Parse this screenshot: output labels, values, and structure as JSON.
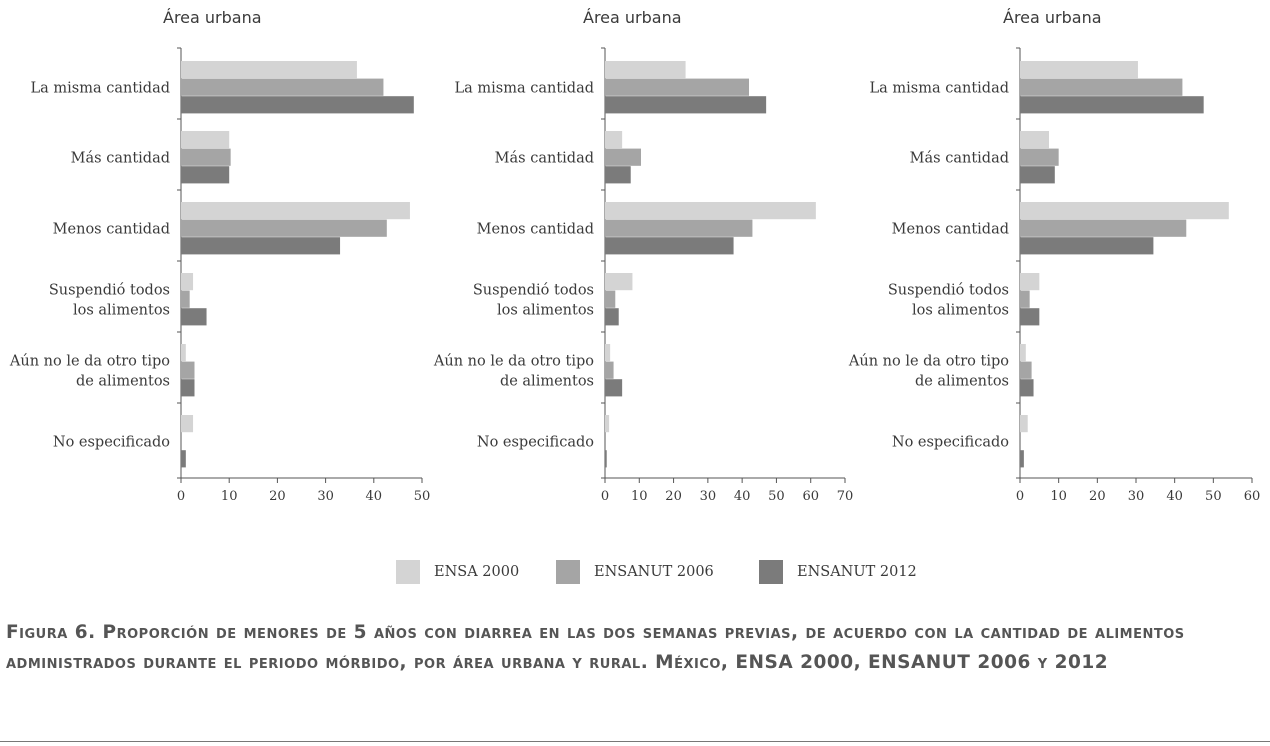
{
  "categories": [
    [
      "La misma cantidad"
    ],
    [
      "Más cantidad"
    ],
    [
      "Menos cantidad"
    ],
    [
      "Suspendió todos",
      "los alimentos"
    ],
    [
      "Aún no le da otro tipo",
      "de alimentos"
    ],
    [
      "No especificado"
    ]
  ],
  "legend": [
    {
      "label": "ENSA 2000",
      "color": "#d4d4d4"
    },
    {
      "label": "ENSANUT 2006",
      "color": "#a5a5a5"
    },
    {
      "label": "ENSANUT 2012",
      "color": "#7b7b7b"
    }
  ],
  "caption": "Figura 6. Proporción de menores de 5 años con diarrea en las dos semanas previas, de acuerdo con la cantidad de alimentos administrados durante el periodo mórbido, por área urbana y rural. México, ENSA 2000, ENSANUT 2006 y 2012",
  "chart_data": [
    {
      "type": "bar",
      "orientation": "horizontal",
      "title": "Área urbana",
      "xlim": [
        0,
        50
      ],
      "ticks": [
        0,
        10,
        20,
        30,
        40,
        50
      ],
      "series": [
        {
          "name": "ENSA 2000",
          "values": [
            36.5,
            10.0,
            47.5,
            2.5,
            1.0,
            2.5
          ]
        },
        {
          "name": "ENSANUT 2006",
          "values": [
            42.0,
            10.3,
            42.7,
            1.8,
            2.8,
            0.0
          ]
        },
        {
          "name": "ENSANUT 2012",
          "values": [
            48.3,
            10.0,
            33.0,
            5.3,
            2.8,
            1.0
          ]
        }
      ]
    },
    {
      "type": "bar",
      "orientation": "horizontal",
      "title": "Área urbana",
      "xlim": [
        0,
        70
      ],
      "ticks": [
        0,
        10,
        20,
        30,
        40,
        50,
        60,
        70
      ],
      "series": [
        {
          "name": "ENSA 2000",
          "values": [
            23.5,
            5.0,
            61.5,
            8.0,
            1.5,
            1.2
          ]
        },
        {
          "name": "ENSANUT 2006",
          "values": [
            42.0,
            10.5,
            43.0,
            3.0,
            2.5,
            0.0
          ]
        },
        {
          "name": "ENSANUT 2012",
          "values": [
            47.0,
            7.5,
            37.5,
            4.0,
            5.0,
            0.5
          ]
        }
      ]
    },
    {
      "type": "bar",
      "orientation": "horizontal",
      "title": "Área urbana",
      "xlim": [
        0,
        60
      ],
      "ticks": [
        0,
        10,
        20,
        30,
        40,
        50,
        60
      ],
      "series": [
        {
          "name": "ENSA 2000",
          "values": [
            30.5,
            7.5,
            54.0,
            5.0,
            1.5,
            2.0
          ]
        },
        {
          "name": "ENSANUT 2006",
          "values": [
            42.0,
            10.0,
            43.0,
            2.5,
            3.0,
            0.0
          ]
        },
        {
          "name": "ENSANUT 2012",
          "values": [
            47.5,
            9.0,
            34.5,
            5.0,
            3.5,
            1.0
          ]
        }
      ]
    }
  ]
}
